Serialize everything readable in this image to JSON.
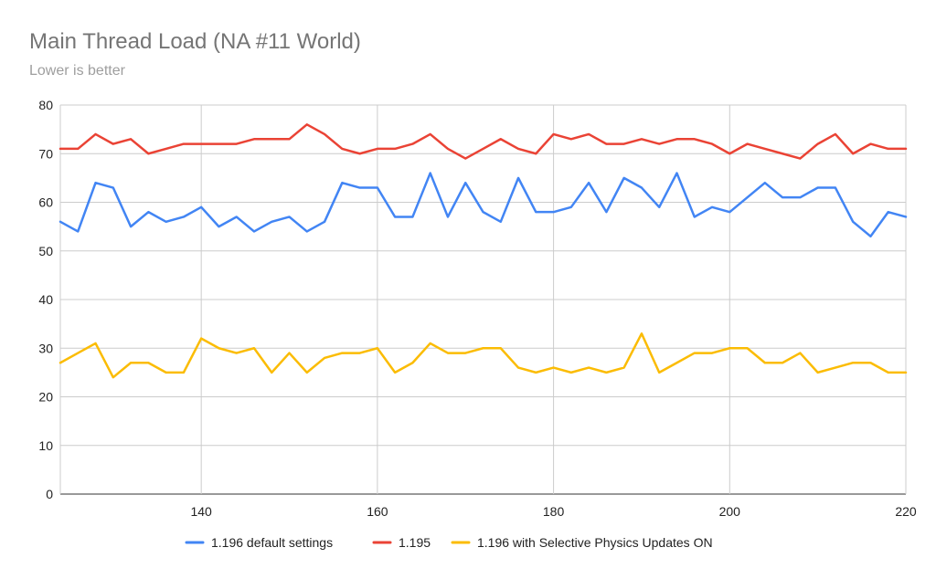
{
  "chart_data": {
    "type": "line",
    "title": "Main Thread Load (NA #11 World)",
    "subtitle": "Lower is better",
    "xlabel": "",
    "ylabel": "",
    "xlim": [
      124,
      220
    ],
    "ylim": [
      0,
      80
    ],
    "x_ticks": [
      140,
      160,
      180,
      200,
      220
    ],
    "y_ticks": [
      0,
      10,
      20,
      30,
      40,
      50,
      60,
      70,
      80
    ],
    "grid": true,
    "legend_position": "bottom",
    "x": [
      124,
      126,
      128,
      130,
      132,
      134,
      136,
      138,
      140,
      142,
      144,
      146,
      148,
      150,
      152,
      154,
      156,
      158,
      160,
      162,
      164,
      166,
      168,
      170,
      172,
      174,
      176,
      178,
      180,
      182,
      184,
      186,
      188,
      190,
      192,
      194,
      196,
      198,
      200,
      202,
      204,
      206,
      208,
      210,
      212,
      214,
      216,
      218,
      220
    ],
    "series": [
      {
        "name": "1.196 default settings",
        "color": "#4285f4",
        "values": [
          56,
          54,
          64,
          63,
          55,
          58,
          56,
          57,
          59,
          55,
          57,
          54,
          56,
          57,
          54,
          56,
          64,
          63,
          63,
          57,
          57,
          66,
          57,
          64,
          58,
          56,
          65,
          58,
          58,
          59,
          64,
          58,
          65,
          63,
          59,
          66,
          57,
          59,
          58,
          61,
          64,
          61,
          61,
          63,
          63,
          56,
          53,
          58,
          57
        ]
      },
      {
        "name": "1.195",
        "color": "#ea4335",
        "values": [
          71,
          71,
          74,
          72,
          73,
          70,
          71,
          72,
          72,
          72,
          72,
          73,
          73,
          73,
          76,
          74,
          71,
          70,
          71,
          71,
          72,
          74,
          71,
          69,
          71,
          73,
          71,
          70,
          74,
          73,
          74,
          72,
          72,
          73,
          72,
          73,
          73,
          72,
          70,
          72,
          71,
          70,
          69,
          72,
          74,
          70,
          72,
          71,
          71
        ]
      },
      {
        "name": "1.196 with Selective Physics Updates ON",
        "color": "#fbbc04",
        "values": [
          27,
          29,
          31,
          24,
          27,
          27,
          25,
          25,
          32,
          30,
          29,
          30,
          25,
          29,
          25,
          28,
          29,
          29,
          30,
          25,
          27,
          31,
          29,
          29,
          30,
          30,
          26,
          25,
          26,
          25,
          26,
          25,
          26,
          33,
          25,
          27,
          29,
          29,
          30,
          30,
          27,
          27,
          29,
          25,
          26,
          27,
          27,
          25,
          25
        ]
      }
    ]
  }
}
